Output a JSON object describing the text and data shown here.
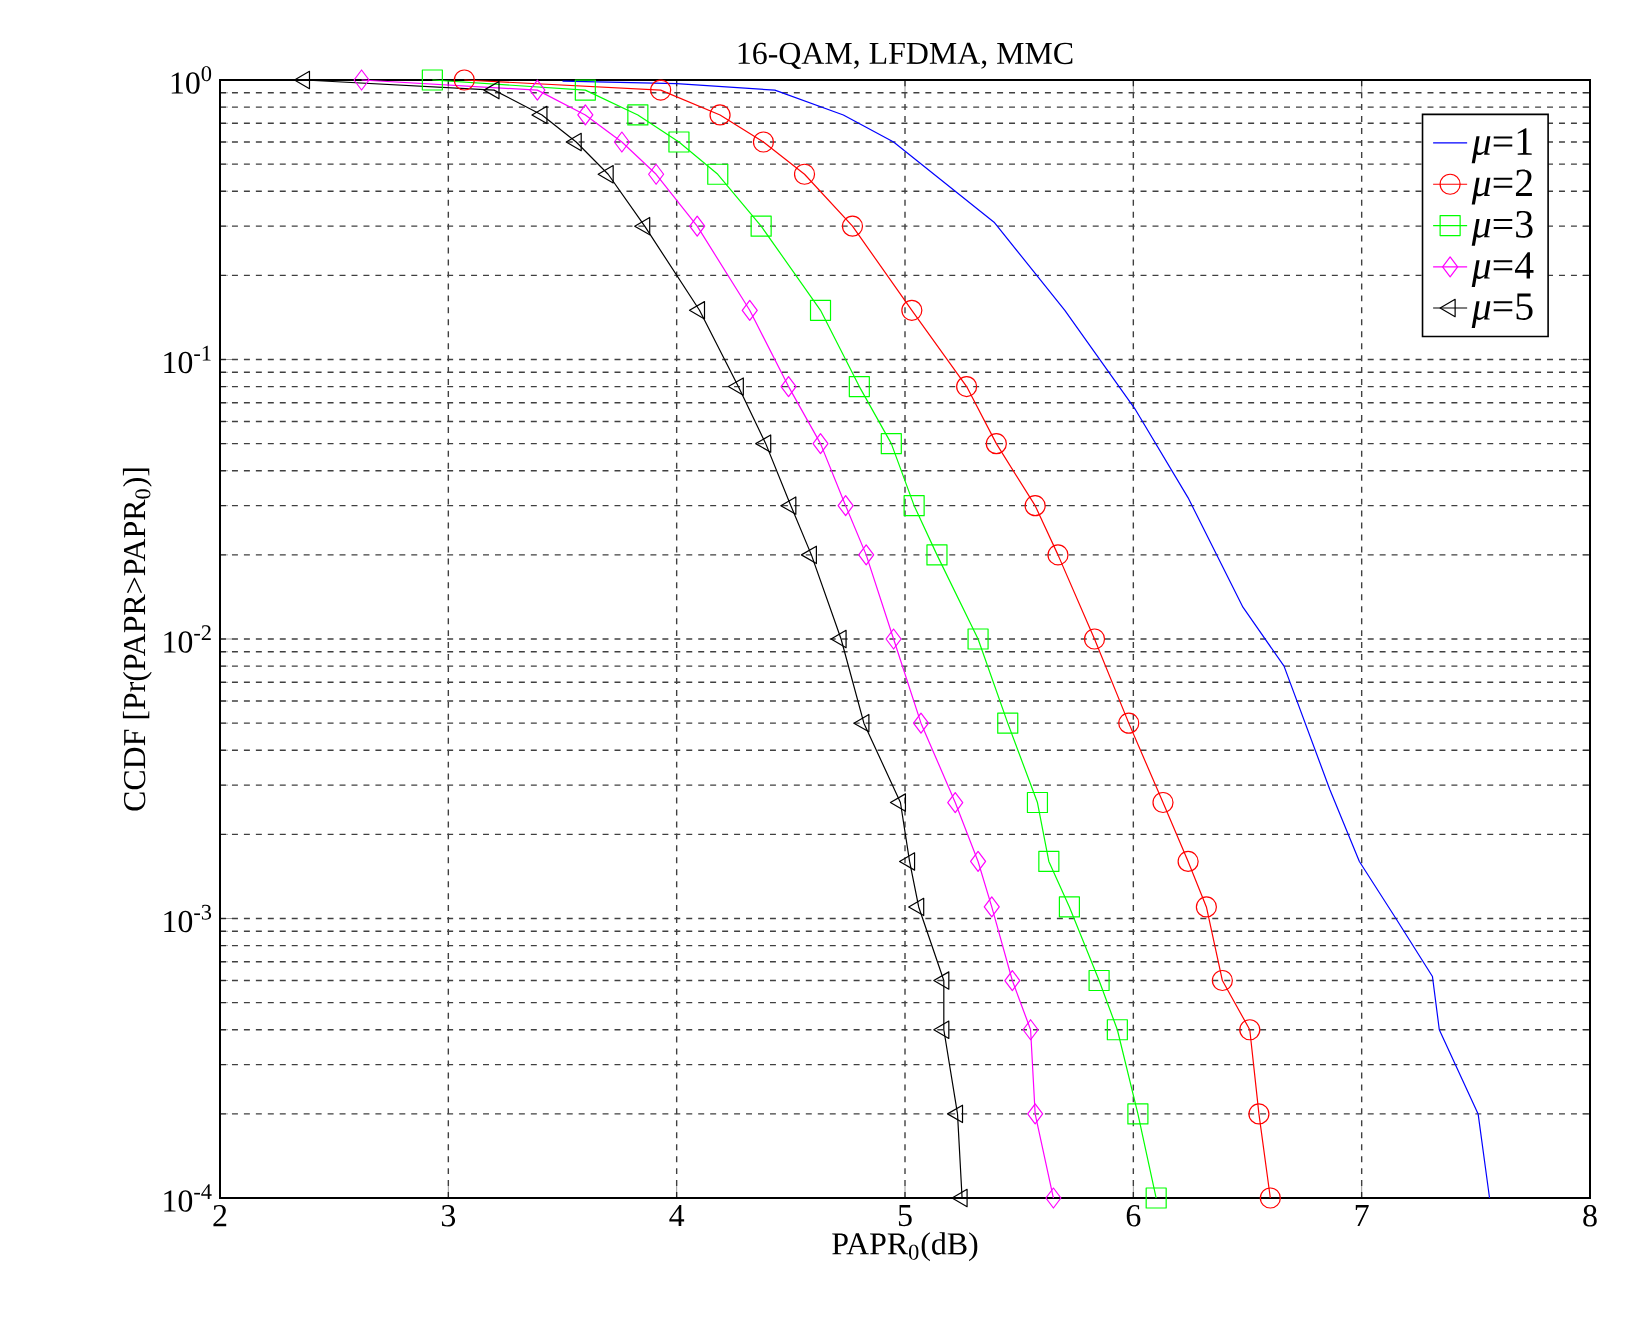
{
  "chart_data": {
    "type": "line",
    "title": "16-QAM, LFDMA, MMC",
    "xlabel": "PAPR$_{0}$(dB)",
    "ylabel": "CCDF [Pr(PAPR>PAPR$_{0}$)]",
    "xlim": [
      2,
      8
    ],
    "xticks": [
      2,
      3,
      4,
      5,
      6,
      7,
      8
    ],
    "ylim": [
      0.0001,
      1
    ],
    "yticks": [
      {
        "value": 0.0001,
        "label": "10$^{-4}$"
      },
      {
        "value": 0.001,
        "label": "10$^{-3}$"
      },
      {
        "value": 0.01,
        "label": "10$^{-2}$"
      },
      {
        "value": 0.1,
        "label": "10$^{-1}$"
      },
      {
        "value": 1,
        "label": "10$^{0}$"
      }
    ],
    "log": "y",
    "grid": true,
    "legend": "top right",
    "line_style": "solid",
    "series": [
      {
        "name": "*μ*=1",
        "color": "#0000ff",
        "marker": "none",
        "x": [
          3.5,
          4.0,
          4.43,
          4.73,
          4.95,
          5.39,
          5.7,
          6.01,
          6.24,
          6.48,
          6.66,
          6.86,
          6.99,
          7.15,
          7.31,
          7.34,
          7.51,
          7.56
        ],
        "values": [
          0.99,
          0.97,
          0.92,
          0.75,
          0.6,
          0.31,
          0.15,
          0.066,
          0.032,
          0.013,
          0.008,
          0.0029,
          0.0016,
          0.001,
          0.00062,
          0.0004,
          0.0002,
          0.0001
        ]
      },
      {
        "name": "*μ*=2",
        "color": "#ff0000",
        "marker": "circle",
        "x": [
          3.07,
          3.93,
          4.19,
          4.38,
          4.56,
          4.77,
          5.03,
          5.27,
          5.4,
          5.57,
          5.67,
          5.83,
          5.98,
          6.13,
          6.24,
          6.32,
          6.39,
          6.51,
          6.55,
          6.6
        ],
        "values": [
          1,
          0.92,
          0.75,
          0.6,
          0.46,
          0.3,
          0.15,
          0.08,
          0.05,
          0.03,
          0.02,
          0.01,
          0.005,
          0.0026,
          0.0016,
          0.0011,
          0.0006,
          0.0004,
          0.0002,
          0.0001
        ]
      },
      {
        "name": "*μ*=3",
        "color": "#00ff00",
        "marker": "square",
        "x": [
          2.93,
          3.6,
          3.83,
          4.01,
          4.18,
          4.37,
          4.63,
          4.8,
          4.94,
          5.04,
          5.14,
          5.32,
          5.45,
          5.58,
          5.63,
          5.72,
          5.85,
          5.93,
          6.02,
          6.1
        ],
        "values": [
          1,
          0.92,
          0.75,
          0.6,
          0.46,
          0.3,
          0.15,
          0.08,
          0.05,
          0.03,
          0.02,
          0.01,
          0.005,
          0.0026,
          0.0016,
          0.0011,
          0.0006,
          0.0004,
          0.0002,
          0.0001
        ]
      },
      {
        "name": "*μ*=4",
        "color": "#ff00ff",
        "marker": "diamond",
        "x": [
          2.62,
          3.39,
          3.6,
          3.76,
          3.91,
          4.09,
          4.32,
          4.49,
          4.63,
          4.74,
          4.83,
          4.95,
          5.07,
          5.22,
          5.32,
          5.38,
          5.47,
          5.55,
          5.57,
          5.65
        ],
        "values": [
          1,
          0.92,
          0.75,
          0.6,
          0.46,
          0.3,
          0.15,
          0.08,
          0.05,
          0.03,
          0.02,
          0.01,
          0.005,
          0.0026,
          0.0016,
          0.0011,
          0.0006,
          0.0004,
          0.0002,
          0.0001
        ]
      },
      {
        "name": "*μ*=5",
        "color": "#000000",
        "marker": "triangle",
        "x": [
          2.37,
          3.2,
          3.41,
          3.56,
          3.7,
          3.86,
          4.1,
          4.27,
          4.39,
          4.5,
          4.59,
          4.72,
          4.82,
          4.98,
          5.02,
          5.06,
          5.17,
          5.17,
          5.23,
          5.25
        ],
        "values": [
          1,
          0.92,
          0.75,
          0.6,
          0.46,
          0.3,
          0.15,
          0.08,
          0.05,
          0.03,
          0.02,
          0.01,
          0.005,
          0.0026,
          0.0016,
          0.0011,
          0.0006,
          0.0004,
          0.0002,
          0.0001
        ]
      }
    ]
  }
}
